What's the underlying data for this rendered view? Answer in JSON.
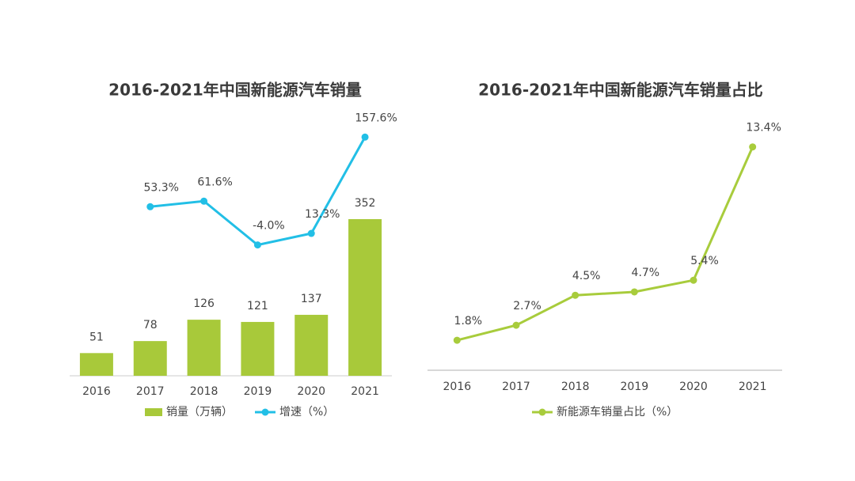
{
  "chart_data": [
    {
      "type": "combo",
      "title": "2016-2021年中国新能源汽车销量",
      "categories": [
        "2016",
        "2017",
        "2018",
        "2019",
        "2020",
        "2021"
      ],
      "ylim": [
        0,
        600
      ],
      "y2lim": [
        -200,
        200
      ],
      "series": [
        {
          "name": "销量（万辆）",
          "kind": "bar",
          "color": "#a8c93a",
          "values": [
            51,
            78,
            126,
            121,
            137,
            352
          ]
        },
        {
          "name": "增速（%）",
          "kind": "line",
          "axis": "y2",
          "color": "#22bfe6",
          "values": [
            null,
            53.3,
            61.6,
            -4.0,
            13.3,
            157.6
          ],
          "value_labels": [
            null,
            "53.3%",
            "61.6%",
            "-4.0%",
            "13.3%",
            "157.6%"
          ]
        }
      ]
    },
    {
      "type": "line",
      "title": "2016-2021年中国新能源汽车销量占比",
      "categories": [
        "2016",
        "2017",
        "2018",
        "2019",
        "2020",
        "2021"
      ],
      "ylim": [
        0,
        15
      ],
      "series": [
        {
          "name": "新能源车销量占比（%）",
          "color": "#a8cc3c",
          "values": [
            1.8,
            2.7,
            4.5,
            4.7,
            5.4,
            13.4
          ],
          "value_labels": [
            "1.8%",
            "2.7%",
            "4.5%",
            "4.7%",
            "5.4%",
            "13.4%"
          ]
        }
      ]
    }
  ]
}
